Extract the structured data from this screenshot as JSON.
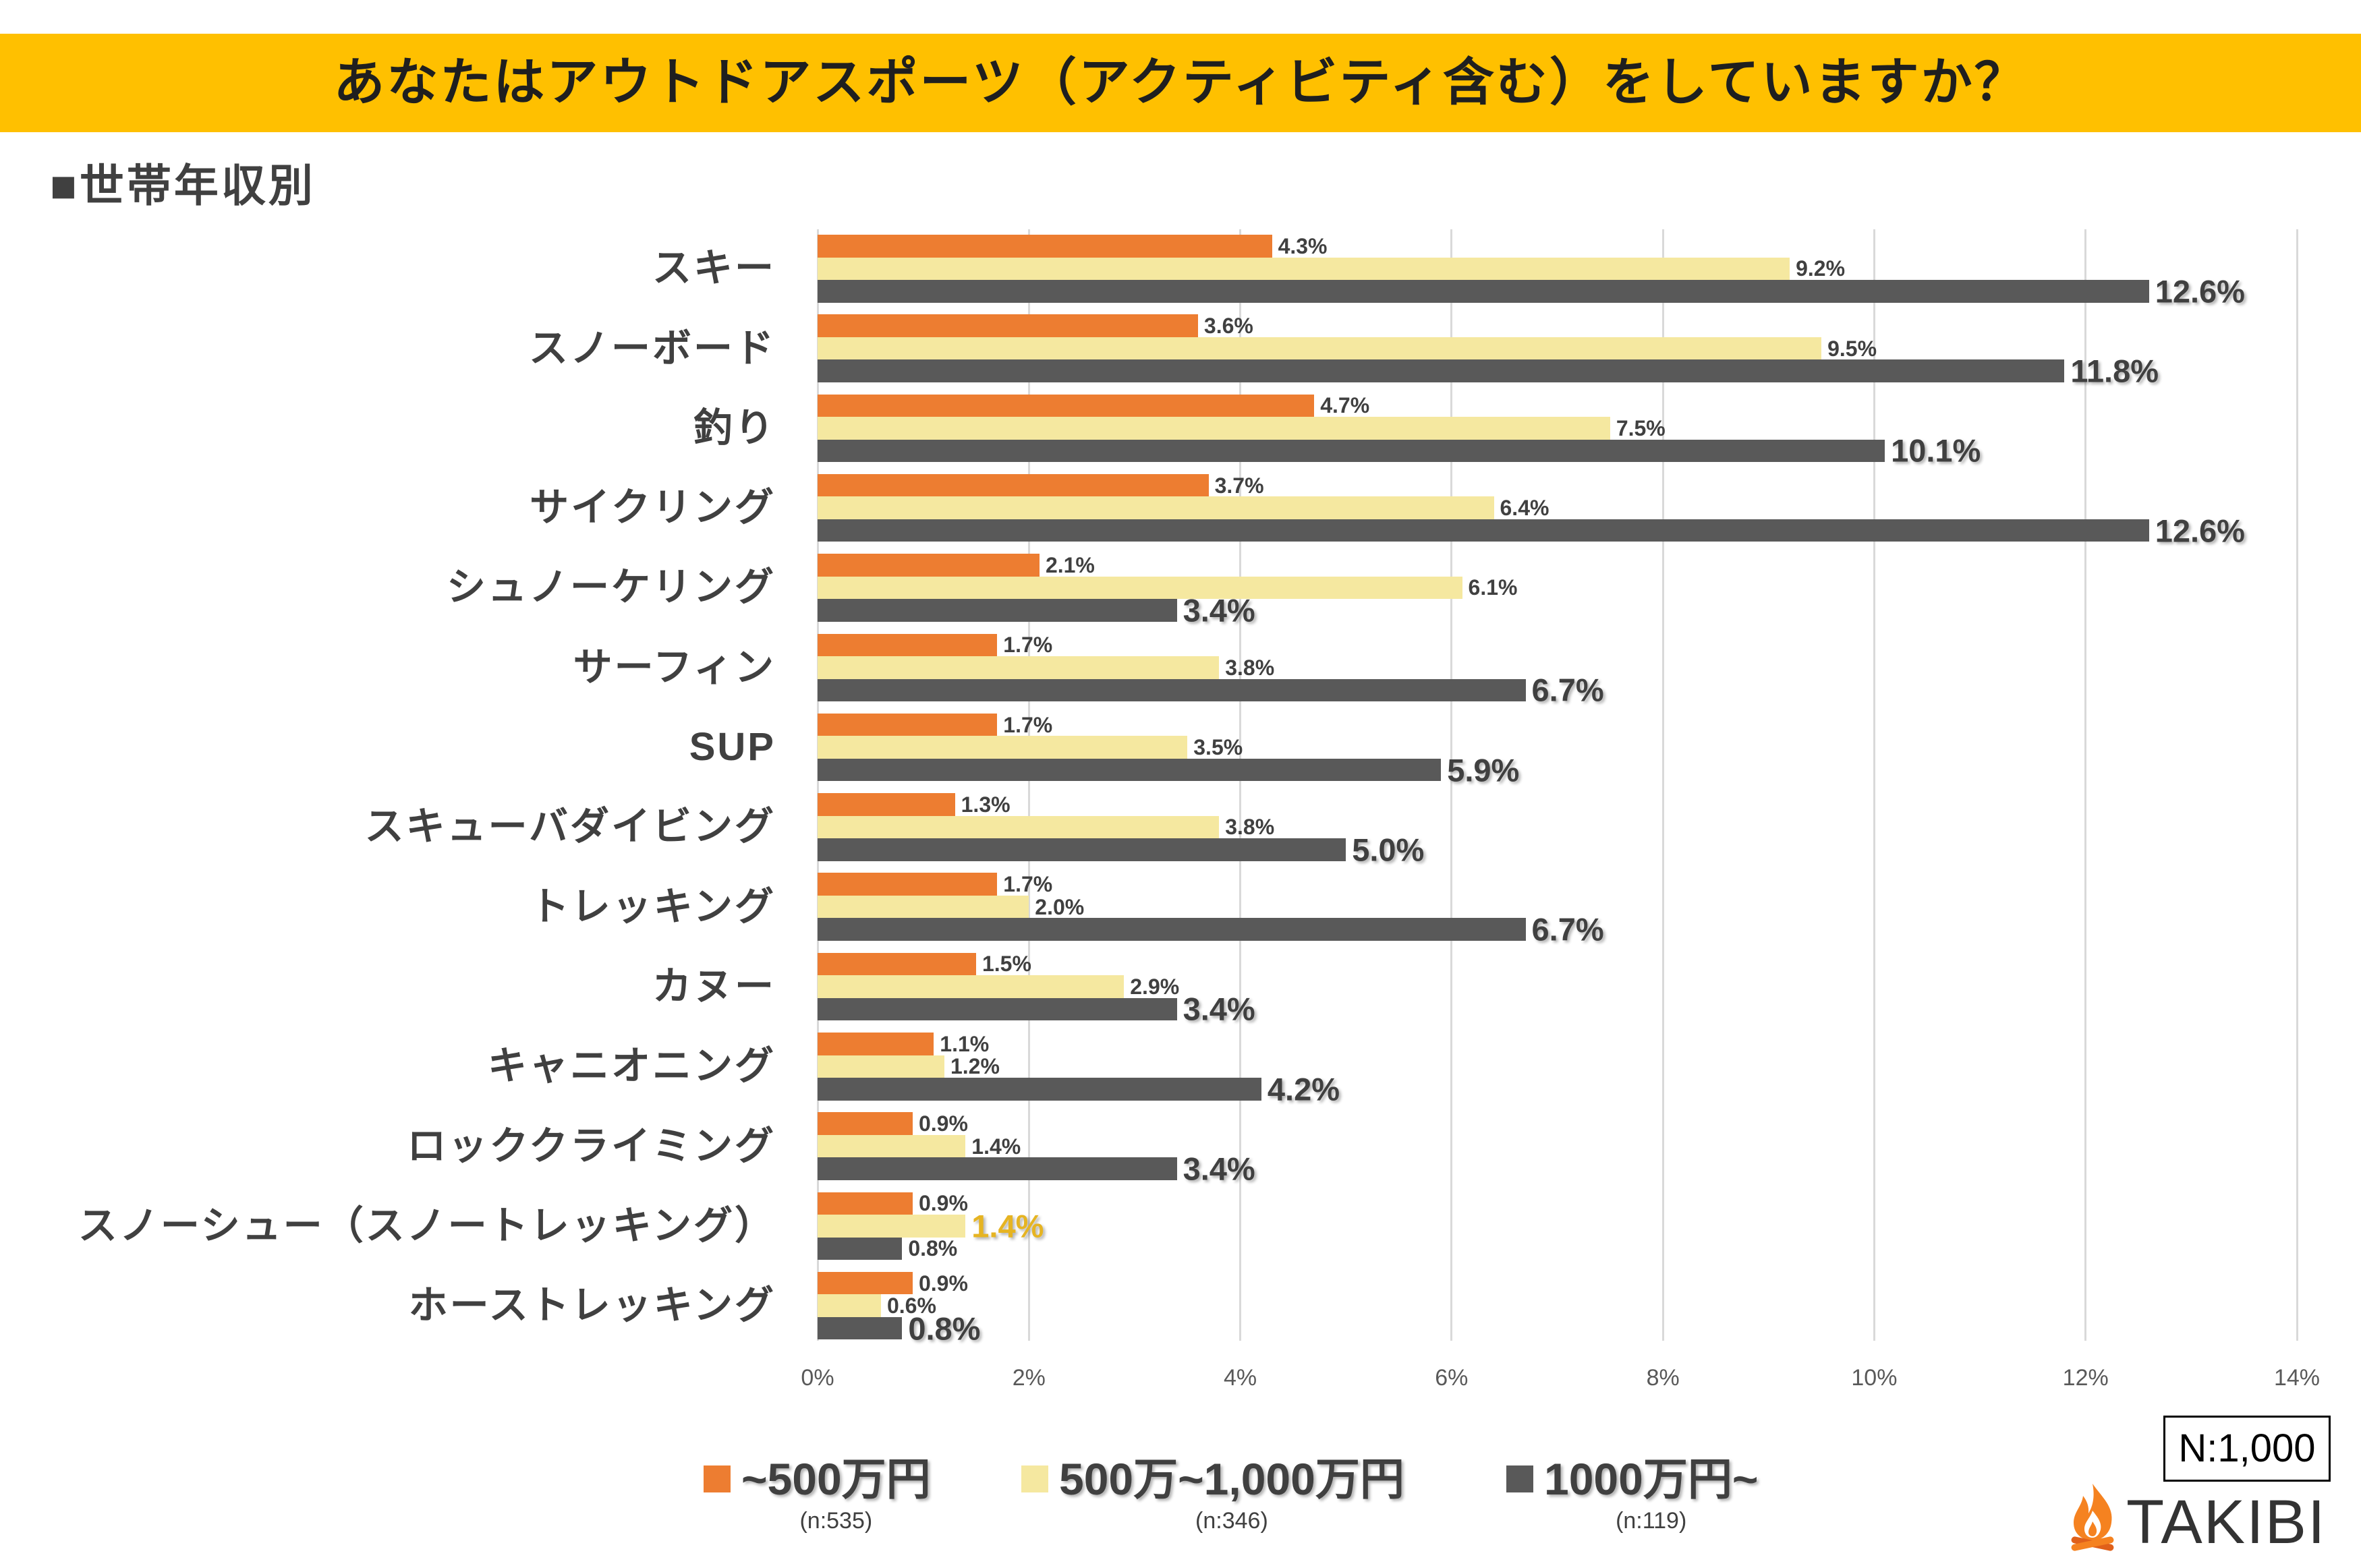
{
  "title": "あなたはアウトドアスポーツ（アクティビティ含む）をしていますか？",
  "subtitle": "■世帯年収別",
  "colors": {
    "title_bar": "#FFC000",
    "title_text": "#1F1F1F",
    "text": "#404040",
    "gridline": "#D9D9D9"
  },
  "chart_data": {
    "type": "bar",
    "orientation": "horizontal",
    "categories": [
      "スキー",
      "スノーボード",
      "釣り",
      "サイクリング",
      "シュノーケリング",
      "サーフィン",
      "SUP",
      "スキューバダイビング",
      "トレッキング",
      "カヌー",
      "キャニオニング",
      "ロッククライミング",
      "スノーシュー（スノートレッキング）",
      "ホーストレッキング"
    ],
    "series": [
      {
        "name": "~500万円",
        "sample_size": "(n:535)",
        "color": "#ED7D31",
        "values": [
          4.3,
          3.6,
          4.7,
          3.7,
          2.1,
          1.7,
          1.7,
          1.3,
          1.7,
          1.5,
          1.1,
          0.9,
          0.9,
          0.9
        ]
      },
      {
        "name": "500万~1,000万円",
        "sample_size": "(n:346)",
        "color": "#F5E8A0",
        "values": [
          9.2,
          9.5,
          7.5,
          6.4,
          6.1,
          3.8,
          3.5,
          3.8,
          2.0,
          2.9,
          1.2,
          1.4,
          1.4,
          0.6
        ]
      },
      {
        "name": "1000万円~",
        "sample_size": "(n:119)",
        "color": "#595959",
        "values": [
          12.6,
          11.8,
          10.1,
          12.6,
          3.4,
          6.7,
          5.9,
          5.0,
          6.7,
          3.4,
          4.2,
          3.4,
          0.8,
          0.8
        ]
      }
    ],
    "value_unit": "%",
    "xlim": [
      0,
      14
    ],
    "xticks": [
      "0%",
      "2%",
      "4%",
      "6%",
      "8%",
      "10%",
      "12%",
      "14%"
    ],
    "grid": "vertical",
    "legend": "bottom",
    "data_labels": true,
    "emphasized_labels": {
      "default": "1000万円~",
      "overrides": [
        {
          "category": "スノーシュー（スノートレッキング）",
          "series": "500万~1,000万円",
          "color": "#E6B422"
        }
      ]
    }
  },
  "sample_total": "N:1,000",
  "logo": {
    "text": "TAKIBI",
    "icon": "flame-icon",
    "color": "#333333",
    "icon_color": "#F58220"
  }
}
